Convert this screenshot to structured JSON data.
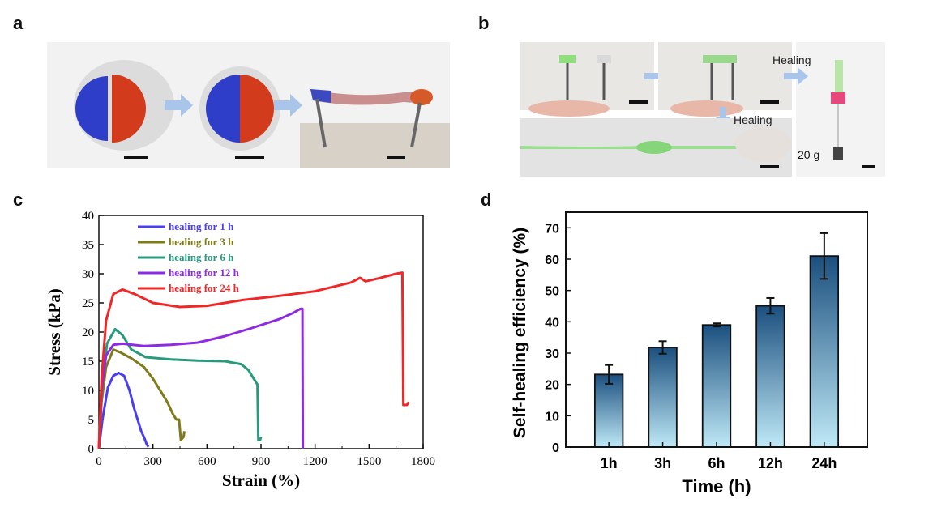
{
  "panels": {
    "a": "a",
    "b": "b",
    "c": "c",
    "d": "d"
  },
  "photo_b": {
    "healing_label_1": "Healing",
    "healing_label_2": "Healing",
    "weight_label": "20 g"
  },
  "chart_data": [
    {
      "id": "c",
      "type": "line",
      "xlabel": "Strain (%)",
      "ylabel": "Stress (kPa)",
      "xlim": [
        0,
        1800
      ],
      "ylim": [
        0,
        40
      ],
      "xticks": [
        0,
        300,
        600,
        900,
        1200,
        1500,
        1800
      ],
      "yticks": [
        0,
        5,
        10,
        15,
        20,
        25,
        30,
        35,
        40
      ],
      "legend_position": "top-left",
      "series": [
        {
          "name": "healing for 1 h",
          "color": "#4a3ff0",
          "points": [
            [
              0,
              0
            ],
            [
              20,
              5
            ],
            [
              50,
              10.5
            ],
            [
              80,
              12.5
            ],
            [
              110,
              13
            ],
            [
              140,
              12.5
            ],
            [
              170,
              10
            ],
            [
              195,
              7
            ],
            [
              215,
              5
            ],
            [
              235,
              3
            ],
            [
              250,
              2
            ],
            [
              265,
              0.8
            ],
            [
              275,
              0.3
            ]
          ]
        },
        {
          "name": "healing for 3 h",
          "color": "#7f7a1a",
          "points": [
            [
              0,
              0
            ],
            [
              15,
              8
            ],
            [
              40,
              14
            ],
            [
              80,
              17
            ],
            [
              120,
              16.5
            ],
            [
              180,
              15.5
            ],
            [
              250,
              14
            ],
            [
              300,
              12
            ],
            [
              340,
              10
            ],
            [
              380,
              8
            ],
            [
              410,
              6
            ],
            [
              430,
              5
            ],
            [
              445,
              5
            ],
            [
              455,
              1.5
            ],
            [
              470,
              2
            ],
            [
              475,
              3
            ]
          ]
        },
        {
          "name": "healing for 6 h",
          "color": "#2a9a7c",
          "points": [
            [
              0,
              0
            ],
            [
              15,
              10
            ],
            [
              45,
              18
            ],
            [
              90,
              20.5
            ],
            [
              130,
              19.5
            ],
            [
              180,
              17
            ],
            [
              260,
              15.7
            ],
            [
              400,
              15.3
            ],
            [
              550,
              15.1
            ],
            [
              700,
              15
            ],
            [
              790,
              14.5
            ],
            [
              830,
              13.5
            ],
            [
              860,
              12
            ],
            [
              880,
              11
            ],
            [
              885,
              1.5
            ],
            [
              895,
              1.5
            ],
            [
              900,
              2
            ]
          ]
        },
        {
          "name": "healing for 12 h",
          "color": "#8d2be3",
          "points": [
            [
              0,
              0
            ],
            [
              15,
              10
            ],
            [
              40,
              16
            ],
            [
              80,
              17.8
            ],
            [
              130,
              18
            ],
            [
              250,
              17.6
            ],
            [
              400,
              17.8
            ],
            [
              550,
              18.2
            ],
            [
              700,
              19.3
            ],
            [
              850,
              20.7
            ],
            [
              1000,
              22.2
            ],
            [
              1080,
              23.3
            ],
            [
              1120,
              24
            ],
            [
              1130,
              24
            ],
            [
              1132,
              0
            ]
          ]
        },
        {
          "name": "healing for 24 h",
          "color": "#ef2727",
          "points": [
            [
              0,
              0
            ],
            [
              15,
              12
            ],
            [
              40,
              22
            ],
            [
              80,
              26.5
            ],
            [
              130,
              27.3
            ],
            [
              200,
              26.5
            ],
            [
              300,
              25
            ],
            [
              450,
              24.3
            ],
            [
              600,
              24.5
            ],
            [
              800,
              25.5
            ],
            [
              1000,
              26.2
            ],
            [
              1200,
              27
            ],
            [
              1400,
              28.5
            ],
            [
              1450,
              29.3
            ],
            [
              1480,
              28.7
            ],
            [
              1550,
              29.2
            ],
            [
              1650,
              30
            ],
            [
              1685,
              30.2
            ],
            [
              1690,
              7.5
            ],
            [
              1710,
              7.5
            ],
            [
              1720,
              8
            ]
          ]
        }
      ]
    },
    {
      "id": "d",
      "type": "bar",
      "xlabel": "Time (h)",
      "ylabel": "Self-healing efficiency (%)",
      "ylim": [
        0,
        75
      ],
      "yticks": [
        0,
        10,
        20,
        30,
        40,
        50,
        60,
        70
      ],
      "categories": [
        "1h",
        "3h",
        "6h",
        "12h",
        "24h"
      ],
      "values": [
        23.2,
        31.8,
        39,
        45.1,
        61
      ],
      "errors": [
        3,
        2,
        0.5,
        2.5,
        7.3
      ],
      "gradient": [
        "#1b4f7e",
        "#bfe9f7"
      ]
    }
  ]
}
